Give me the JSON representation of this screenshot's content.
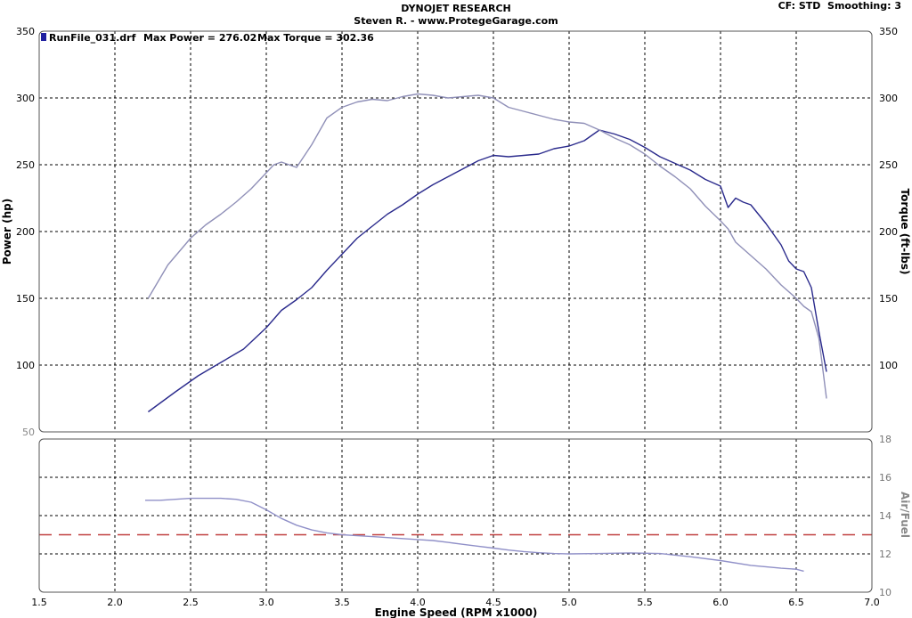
{
  "header": {
    "title": "DYNOJET RESEARCH",
    "subtitle": "Steven R. - www.ProtegeGarage.com",
    "settings": "CF: STD  Smoothing: 3"
  },
  "legend": {
    "run": "RunFile_031.drf",
    "max_power": "Max Power = 276.02",
    "max_torque": "Max Torque = 302.36",
    "swatch_color": "#2020a0"
  },
  "chart_data": [
    {
      "type": "line",
      "xlabel": "Engine Speed (RPM x1000)",
      "ylabel": "Power (hp)",
      "y2label": "Torque (ft-lbs)",
      "xlim": [
        1.5,
        7.0
      ],
      "ylim": [
        50,
        350
      ],
      "x_ticks": [
        "1.5",
        "2.0",
        "2.5",
        "3.0",
        "3.5",
        "4.0",
        "4.5",
        "5.0",
        "5.5",
        "6.0",
        "6.5",
        "7.0"
      ],
      "y_ticks_left": [
        "50",
        "100",
        "150",
        "200",
        "250",
        "300",
        "350"
      ],
      "y_ticks_right": [
        "100",
        "150",
        "200",
        "250",
        "300",
        "350"
      ],
      "grid": true,
      "series": [
        {
          "key": "power",
          "color": "#2a2a8c",
          "x": [
            2.22,
            2.4,
            2.55,
            2.7,
            2.85,
            3.0,
            3.1,
            3.2,
            3.3,
            3.4,
            3.5,
            3.6,
            3.7,
            3.8,
            3.9,
            4.0,
            4.1,
            4.2,
            4.3,
            4.4,
            4.5,
            4.6,
            4.7,
            4.8,
            4.9,
            5.0,
            5.1,
            5.2,
            5.3,
            5.4,
            5.5,
            5.6,
            5.7,
            5.8,
            5.9,
            6.0,
            6.05,
            6.1,
            6.15,
            6.2,
            6.3,
            6.4,
            6.45,
            6.5,
            6.55,
            6.6,
            6.65,
            6.7
          ],
          "y": [
            65,
            80,
            92,
            102,
            112,
            128,
            141,
            149,
            158,
            171,
            183,
            195,
            204,
            213,
            220,
            228,
            235,
            241,
            247,
            253,
            257,
            256,
            257,
            258,
            262,
            264,
            268,
            276,
            273,
            269,
            263,
            256,
            251,
            246,
            239,
            234,
            218,
            225,
            222,
            220,
            206,
            190,
            178,
            172,
            170,
            158,
            125,
            95
          ]
        },
        {
          "key": "torque",
          "color": "#9090b8",
          "x": [
            2.22,
            2.35,
            2.5,
            2.6,
            2.7,
            2.8,
            2.9,
            3.0,
            3.05,
            3.1,
            3.2,
            3.3,
            3.4,
            3.5,
            3.6,
            3.7,
            3.8,
            3.9,
            4.0,
            4.1,
            4.2,
            4.3,
            4.4,
            4.5,
            4.6,
            4.7,
            4.8,
            4.9,
            5.0,
            5.1,
            5.2,
            5.3,
            5.4,
            5.5,
            5.6,
            5.7,
            5.8,
            5.9,
            6.0,
            6.05,
            6.1,
            6.2,
            6.3,
            6.4,
            6.5,
            6.55,
            6.6,
            6.65,
            6.7
          ],
          "y": [
            150,
            175,
            195,
            205,
            213,
            222,
            232,
            244,
            250,
            252,
            248,
            265,
            285,
            293,
            297,
            299,
            298,
            301,
            303,
            302,
            300,
            301,
            302,
            300,
            293,
            290,
            287,
            284,
            282,
            281,
            276,
            270,
            265,
            258,
            249,
            241,
            232,
            219,
            208,
            202,
            192,
            182,
            172,
            160,
            150,
            144,
            140,
            120,
            75
          ]
        }
      ]
    },
    {
      "type": "line",
      "ylabel": "Air/Fuel",
      "xlim": [
        1.5,
        7.0
      ],
      "ylim": [
        10,
        18
      ],
      "y_ticks": [
        "10",
        "12",
        "14",
        "16",
        "18"
      ],
      "grid": true,
      "reference_line": {
        "y": 13.0,
        "color": "#c04040",
        "style": "dashed"
      },
      "series": [
        {
          "key": "afr",
          "color": "#9090c8",
          "x": [
            2.2,
            2.3,
            2.4,
            2.5,
            2.6,
            2.7,
            2.8,
            2.9,
            3.0,
            3.1,
            3.2,
            3.3,
            3.4,
            3.5,
            3.6,
            3.7,
            3.8,
            3.9,
            4.0,
            4.1,
            4.2,
            4.3,
            4.4,
            4.5,
            4.6,
            4.7,
            4.8,
            4.9,
            5.0,
            5.2,
            5.4,
            5.6,
            5.8,
            6.0,
            6.2,
            6.4,
            6.5,
            6.55
          ],
          "y": [
            14.8,
            14.8,
            14.85,
            14.9,
            14.9,
            14.9,
            14.85,
            14.7,
            14.3,
            13.85,
            13.5,
            13.25,
            13.1,
            13.0,
            12.95,
            12.9,
            12.85,
            12.8,
            12.75,
            12.7,
            12.6,
            12.5,
            12.4,
            12.3,
            12.2,
            12.12,
            12.06,
            12.02,
            12.0,
            12.02,
            12.05,
            12.02,
            11.85,
            11.65,
            11.4,
            11.25,
            11.2,
            11.1
          ]
        }
      ]
    }
  ]
}
